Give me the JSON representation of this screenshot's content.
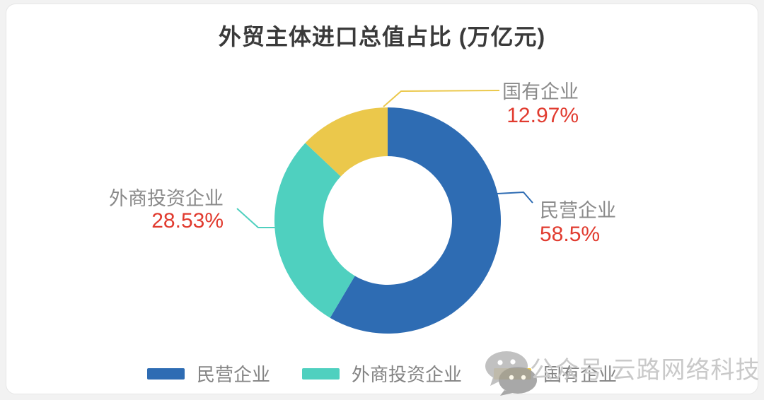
{
  "title": "外贸主体进口总值占比 (万亿元)",
  "chart_data": {
    "type": "pie",
    "subtype": "donut",
    "title": "外贸主体进口总值占比 (万亿元)",
    "unit": "万亿元",
    "start_angle": "top",
    "direction": "clockwise",
    "inner_radius_ratio": 0.57,
    "slices": [
      {
        "name": "民营企业",
        "value": 58.5,
        "percent_label": "58.5%",
        "color": "#2E6CB3"
      },
      {
        "name": "外商投资企业",
        "value": 28.53,
        "percent_label": "28.53%",
        "color": "#4FD0BF"
      },
      {
        "name": "国有企业",
        "value": 12.97,
        "percent_label": "12.97%",
        "color": "#EBC84B"
      }
    ],
    "label_name_color": "#8A8A8A",
    "label_value_color": "#E13B2F",
    "legend_position": "bottom",
    "grid": false
  },
  "watermark": {
    "icon": "wechat-icon",
    "text": "公众号 云路网络科技",
    "color": "#C9C9C9"
  },
  "colors": {
    "background": "#F2F2F2",
    "card": "#FFFFFF",
    "title_text": "#3A3A3A",
    "legend_text": "#848484"
  }
}
